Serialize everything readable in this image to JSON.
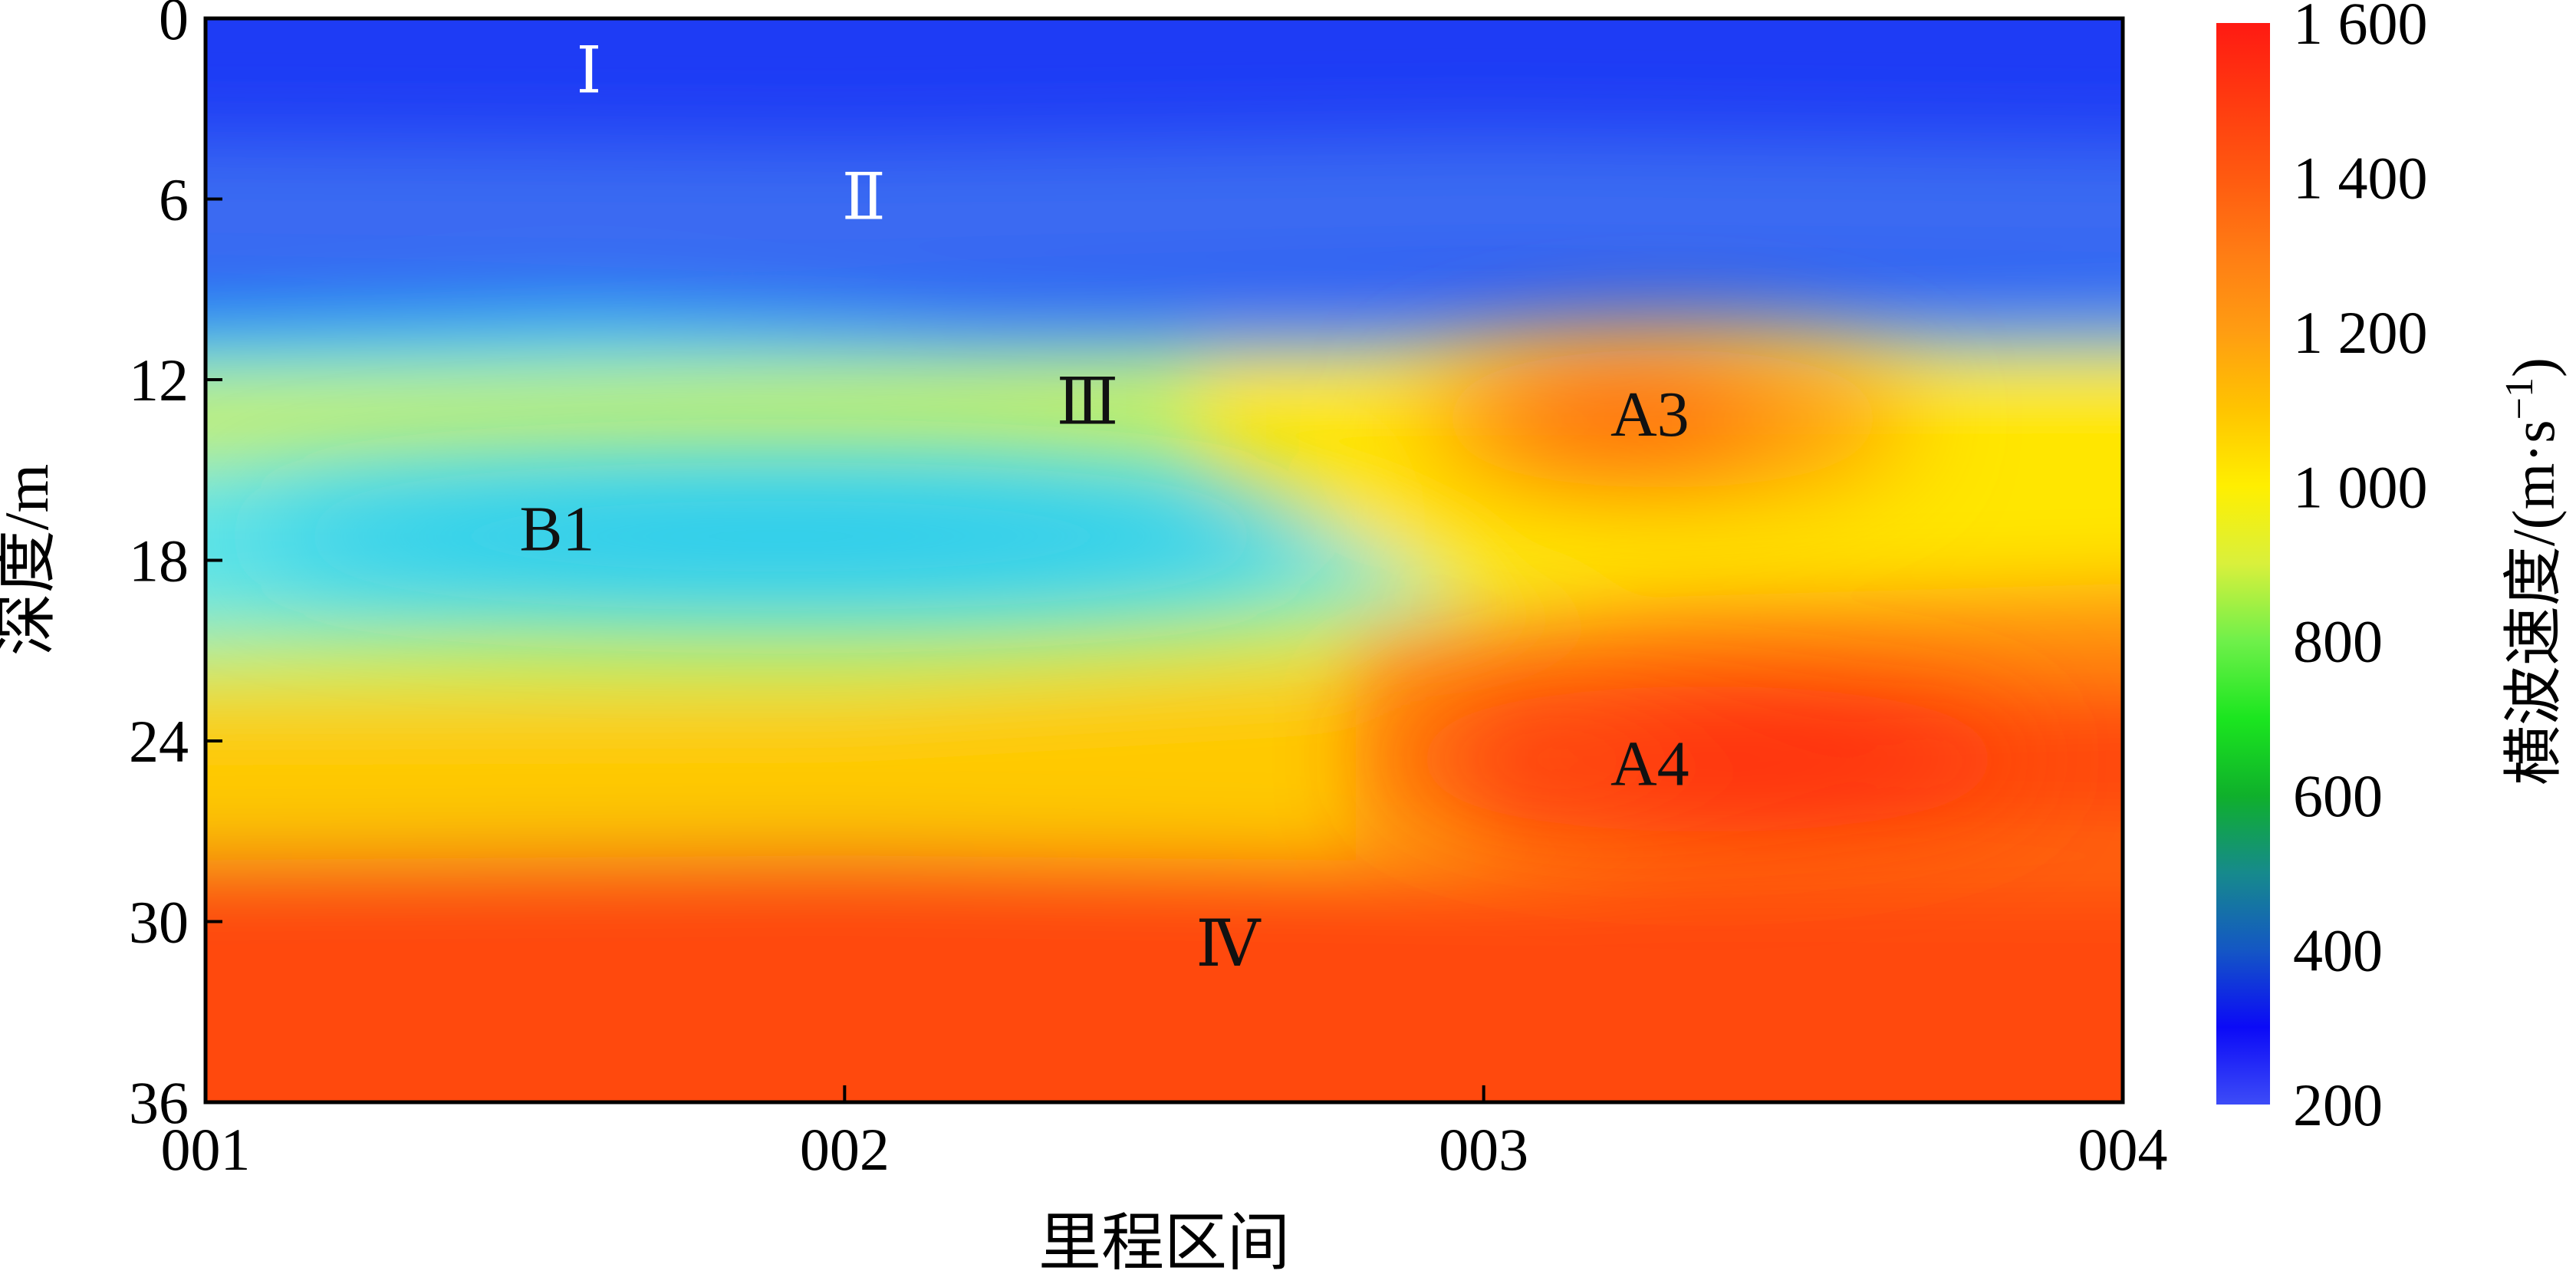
{
  "chart_data": {
    "type": "heatmap",
    "xlabel": "里程区间",
    "ylabel": "深度/m",
    "x_ticks": [
      "001",
      "002",
      "003",
      "004"
    ],
    "y_ticks": [
      "0",
      "6",
      "12",
      "18",
      "24",
      "30",
      "36"
    ],
    "xlim": [
      1,
      4
    ],
    "ylim": [
      0,
      36
    ],
    "y_inverted": true,
    "grid": false,
    "colorbar": {
      "label": "横波速度/(m·s",
      "label_superscript": "−1",
      "label_close": ")",
      "range": [
        200,
        1600
      ],
      "ticks": [
        "200",
        "400",
        "600",
        "800",
        "1 000",
        "1 200",
        "1 400",
        "1 600"
      ],
      "tick_values": [
        200,
        400,
        600,
        800,
        1000,
        1200,
        1400,
        1600
      ],
      "colors": [
        {
          "v": 200,
          "c": "#3d4cf7"
        },
        {
          "v": 300,
          "c": "#0b0af7"
        },
        {
          "v": 400,
          "c": "#1457c4"
        },
        {
          "v": 500,
          "c": "#168a8c"
        },
        {
          "v": 600,
          "c": "#0fb02b"
        },
        {
          "v": 700,
          "c": "#1be61f"
        },
        {
          "v": 800,
          "c": "#6ff04a"
        },
        {
          "v": 900,
          "c": "#d9f03c"
        },
        {
          "v": 1000,
          "c": "#ffef00"
        },
        {
          "v": 1100,
          "c": "#ffc400"
        },
        {
          "v": 1200,
          "c": "#ff9d12"
        },
        {
          "v": 1300,
          "c": "#ff7d14"
        },
        {
          "v": 1400,
          "c": "#ff5a10"
        },
        {
          "v": 1500,
          "c": "#ff3a10"
        },
        {
          "v": 1600,
          "c": "#ff1a12"
        }
      ]
    },
    "field_colors": {
      "blue": "#1e3cf5",
      "light_blue": "#3a6cf2",
      "cyan": "#20c8ec",
      "light_cyan": "#62e4e6",
      "green_yellow": "#c8f05a",
      "yellow": "#ffe600",
      "gold": "#ffc900",
      "orange": "#ff8f0a",
      "red_orange": "#ff4a08",
      "red": "#ff2010"
    },
    "zones": [
      {
        "label": "Ⅰ",
        "x": 1.6,
        "depth": 1.8,
        "color": "#ffffff"
      },
      {
        "label": "Ⅱ",
        "x": 2.03,
        "depth": 6.0,
        "color": "#ffffff"
      },
      {
        "label": "Ⅲ",
        "x": 2.38,
        "depth": 12.8,
        "color": "#111111"
      },
      {
        "label": "B1",
        "x": 1.55,
        "depth": 17.0,
        "color": "#111111"
      },
      {
        "label": "A3",
        "x": 3.26,
        "depth": 13.2,
        "color": "#111111"
      },
      {
        "label": "A4",
        "x": 3.26,
        "depth": 24.8,
        "color": "#111111"
      },
      {
        "label": "Ⅳ",
        "x": 2.6,
        "depth": 30.8,
        "color": "#111111"
      }
    ]
  }
}
